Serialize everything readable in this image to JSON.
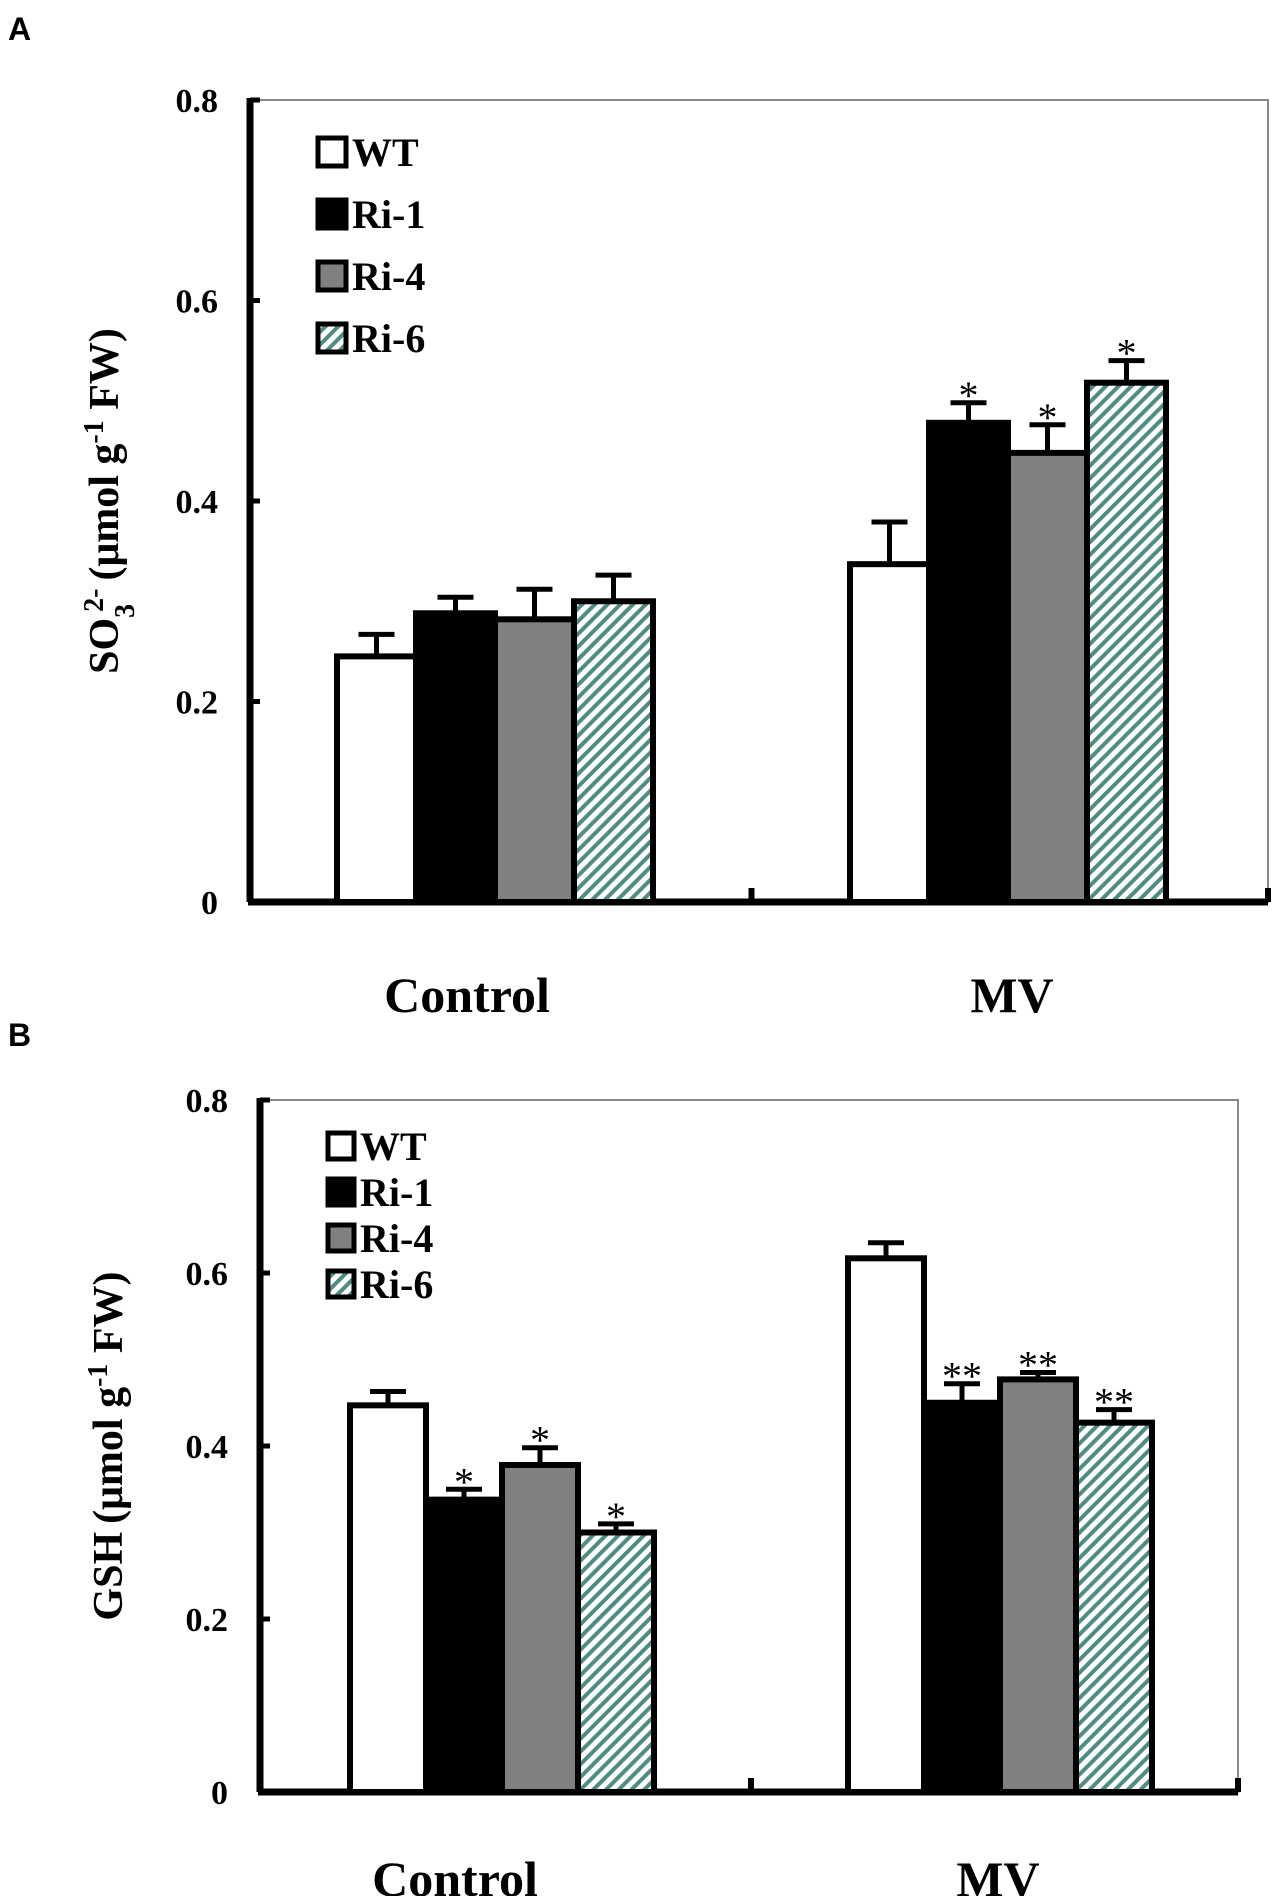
{
  "chart_data": [
    {
      "panel": "A",
      "type": "bar",
      "ylabel_parts": [
        "SO",
        "3",
        "2-",
        "(μmol g",
        "-1",
        " FW)"
      ],
      "ylim": [
        0,
        0.8
      ],
      "yticks": [
        "0",
        "0.2",
        "0.4",
        "0.6",
        "0.8"
      ],
      "categories": [
        "Control",
        "MV"
      ],
      "legend": [
        "WT",
        "Ri-1",
        "Ri-4",
        "Ri-6"
      ],
      "series": [
        {
          "name": "WT",
          "values": [
            0.245,
            0.337
          ],
          "errors": [
            0.022,
            0.042
          ],
          "sig": [
            "",
            ""
          ]
        },
        {
          "name": "Ri-1",
          "values": [
            0.288,
            0.478
          ],
          "errors": [
            0.016,
            0.02
          ],
          "sig": [
            "",
            "*"
          ]
        },
        {
          "name": "Ri-4",
          "values": [
            0.282,
            0.448
          ],
          "errors": [
            0.03,
            0.028
          ],
          "sig": [
            "",
            "*"
          ]
        },
        {
          "name": "Ri-6",
          "values": [
            0.3,
            0.518
          ],
          "errors": [
            0.026,
            0.022
          ],
          "sig": [
            "",
            "*"
          ]
        }
      ]
    },
    {
      "panel": "B",
      "type": "bar",
      "ylabel_parts": [
        "GSH",
        "",
        "",
        "(μmol g",
        "-1",
        " FW)"
      ],
      "ylim": [
        0,
        0.8
      ],
      "yticks": [
        "0",
        "0.2",
        "0.4",
        "0.6",
        "0.8"
      ],
      "categories": [
        "Control",
        "MV"
      ],
      "legend": [
        "WT",
        "Ri-1",
        "Ri-4",
        "Ri-6"
      ],
      "series": [
        {
          "name": "WT",
          "values": [
            0.447,
            0.617
          ],
          "errors": [
            0.016,
            0.018
          ],
          "sig": [
            "",
            ""
          ]
        },
        {
          "name": "Ri-1",
          "values": [
            0.338,
            0.45
          ],
          "errors": [
            0.012,
            0.022
          ],
          "sig": [
            "*",
            "**"
          ]
        },
        {
          "name": "Ri-4",
          "values": [
            0.378,
            0.477
          ],
          "errors": [
            0.02,
            0.008
          ],
          "sig": [
            "*",
            "**"
          ]
        },
        {
          "name": "Ri-6",
          "values": [
            0.3,
            0.427
          ],
          "errors": [
            0.01,
            0.015
          ],
          "sig": [
            "*",
            "**"
          ]
        }
      ]
    }
  ]
}
